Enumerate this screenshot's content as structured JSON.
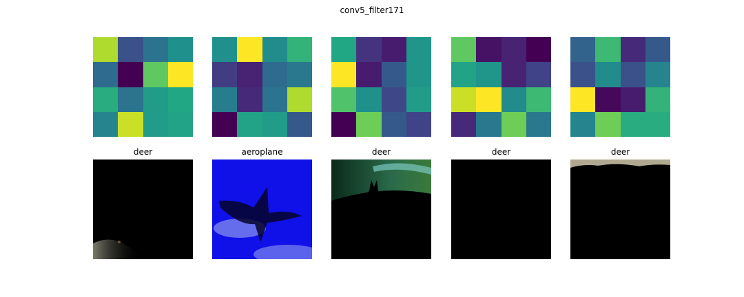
{
  "figure": {
    "title": "conv5_filter171"
  },
  "chart_data": {
    "type": "heatmap",
    "title": "conv5_filter171",
    "colormap": "viridis",
    "panels": [
      {
        "values": [
          [
            0.88,
            0.25,
            0.38,
            0.5
          ],
          [
            0.35,
            0.0,
            0.75,
            1.0
          ],
          [
            0.62,
            0.38,
            0.55,
            0.6
          ],
          [
            0.45,
            0.92,
            0.55,
            0.58
          ]
        ],
        "image_label": "deer",
        "image_colors": {
          "background": "#000000",
          "accent": "#8a8a7a"
        }
      },
      {
        "values": [
          [
            0.5,
            1.0,
            0.48,
            0.65
          ],
          [
            0.18,
            0.1,
            0.35,
            0.4
          ],
          [
            0.42,
            0.12,
            0.38,
            0.88
          ],
          [
            0.0,
            0.58,
            0.55,
            0.28
          ]
        ],
        "image_label": "aeroplane",
        "image_colors": {
          "background": "#1010e8",
          "accent": "#8890f0"
        }
      },
      {
        "values": [
          [
            0.6,
            0.15,
            0.08,
            0.52
          ],
          [
            1.0,
            0.08,
            0.28,
            0.52
          ],
          [
            0.72,
            0.5,
            0.22,
            0.55
          ],
          [
            0.0,
            0.78,
            0.28,
            0.2
          ]
        ],
        "image_label": "deer",
        "image_colors": {
          "background": "#000000",
          "accent": "#2a6a4a"
        }
      },
      {
        "values": [
          [
            0.75,
            0.05,
            0.1,
            0.0
          ],
          [
            0.58,
            0.52,
            0.1,
            0.2
          ],
          [
            0.92,
            1.0,
            0.48,
            0.68
          ],
          [
            0.12,
            0.4,
            0.78,
            0.4
          ]
        ],
        "image_label": "deer",
        "image_colors": {
          "background": "#000000",
          "accent": "#000000"
        }
      },
      {
        "values": [
          [
            0.32,
            0.68,
            0.12,
            0.28
          ],
          [
            0.25,
            0.48,
            0.25,
            0.45
          ],
          [
            1.0,
            0.02,
            0.08,
            0.65
          ],
          [
            0.45,
            0.78,
            0.62,
            0.62
          ]
        ],
        "image_label": "deer",
        "image_colors": {
          "background": "#000000",
          "accent": "#b0a890"
        }
      }
    ]
  }
}
